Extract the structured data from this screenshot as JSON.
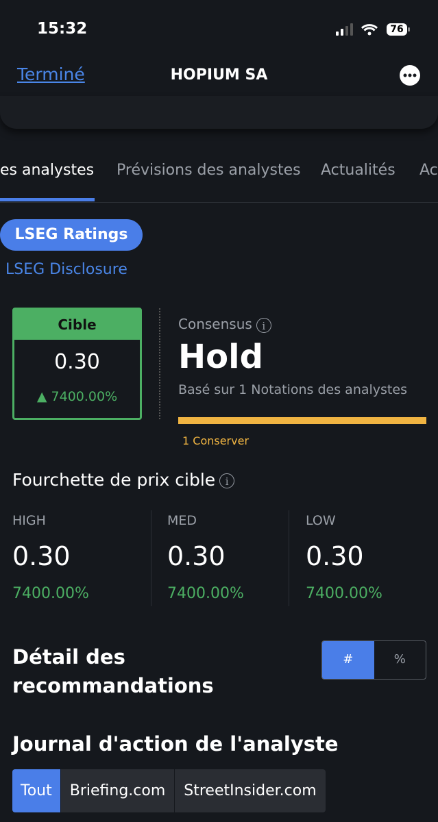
{
  "status_bar": {
    "time": "15:32",
    "battery": "76"
  },
  "nav": {
    "done": "Terminé",
    "title": "HOPIUM SA"
  },
  "tabs": [
    "es analystes",
    "Prévisions des analystes",
    "Actualités",
    "Ac"
  ],
  "ratings_button": "LSEG Ratings",
  "disclosure_link": "LSEG Disclosure",
  "target": {
    "label": "Cible",
    "value": "0.30",
    "change": "7400.00%"
  },
  "consensus": {
    "label": "Consensus",
    "rating": "Hold",
    "basis": "Basé sur 1 Notations des analystes",
    "breakdown": "1 Conserver"
  },
  "price_range": {
    "title": "Fourchette de prix cible",
    "columns": [
      {
        "label": "HIGH",
        "value": "0.30",
        "change": "7400.00%"
      },
      {
        "label": "MED",
        "value": "0.30",
        "change": "7400.00%"
      },
      {
        "label": "LOW",
        "value": "0.30",
        "change": "7400.00%"
      }
    ]
  },
  "recommendations": {
    "title": "Détail des recommandations",
    "toggle": [
      "#",
      "%"
    ]
  },
  "action_log": {
    "title": "Journal d'action de l'analyste",
    "filters": [
      "Tout",
      "Briefing.com",
      "StreetInsider.com"
    ]
  }
}
